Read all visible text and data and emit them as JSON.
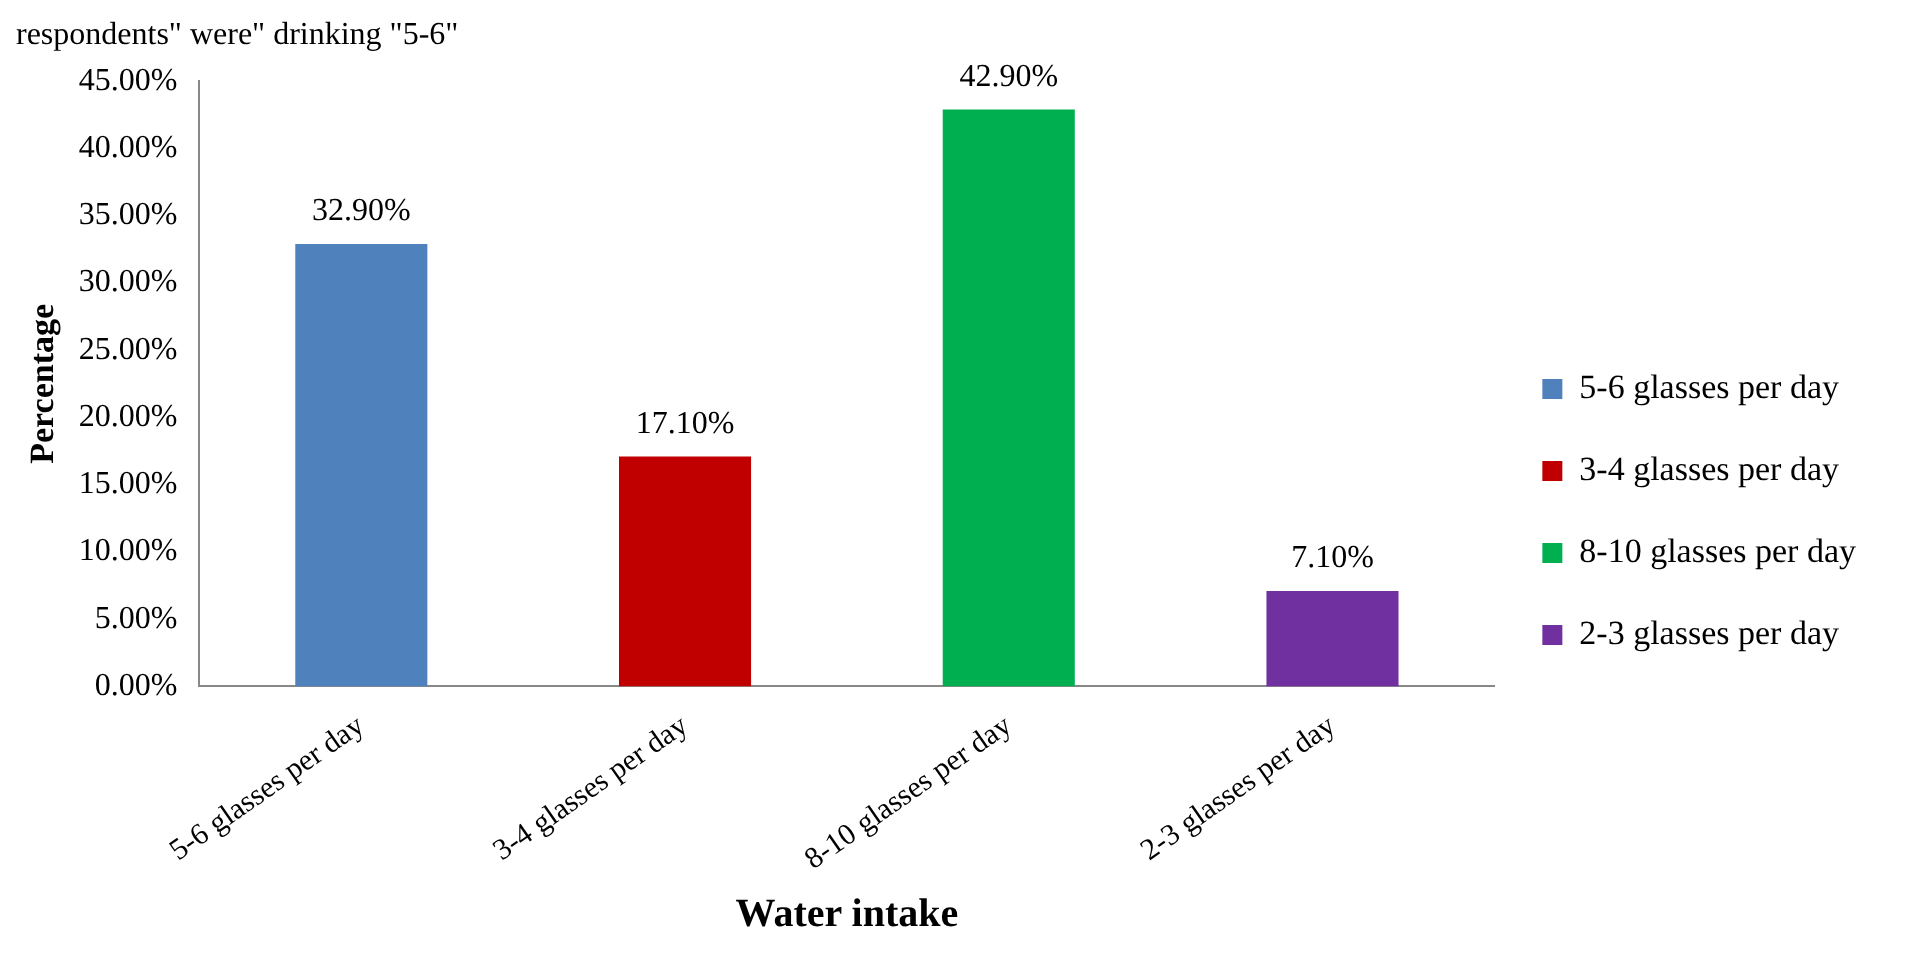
{
  "chart_data": {
    "type": "bar",
    "xlabel": "Water intake",
    "ylabel": "Percentage",
    "annotations": [
      "respondents\" were\" drinking \"5-6\""
    ],
    "categories": [
      "5-6 glasses per day",
      "3-4 glasses per day",
      "8-10 glasses per day",
      "2-3 glasses per day"
    ],
    "series": [
      {
        "name": "5-6 glasses per day",
        "color": "#4f81bd",
        "values": [
          32.9,
          null,
          null,
          null
        ],
        "value_labels": [
          "32.90%",
          null,
          null,
          null
        ]
      },
      {
        "name": "3-4 glasses per day",
        "color": "#c00000",
        "values": [
          null,
          17.1,
          null,
          null
        ],
        "value_labels": [
          null,
          "17.10%",
          null,
          null
        ]
      },
      {
        "name": "8-10 glasses per day",
        "color": "#00b050",
        "values": [
          null,
          null,
          42.9,
          null
        ],
        "value_labels": [
          null,
          null,
          "42.90%",
          null
        ]
      },
      {
        "name": "2-3 glasses per day",
        "color": "#7030a0",
        "values": [
          null,
          null,
          null,
          7.1
        ],
        "value_labels": [
          null,
          null,
          null,
          "7.10%"
        ]
      }
    ],
    "ylim": [
      0,
      45
    ],
    "yticks": [
      {
        "value": 0,
        "label": "0.00%"
      },
      {
        "value": 5,
        "label": "5.00%"
      },
      {
        "value": 10,
        "label": "10.00%"
      },
      {
        "value": 15,
        "label": "15.00%"
      },
      {
        "value": 20,
        "label": "20.00%"
      },
      {
        "value": 25,
        "label": "25.00%"
      },
      {
        "value": 30,
        "label": "30.00%"
      },
      {
        "value": 35,
        "label": "35.00%"
      },
      {
        "value": 40,
        "label": "40.00%"
      },
      {
        "value": 45,
        "label": "45.00%"
      }
    ],
    "grid": false,
    "legend": "right"
  }
}
